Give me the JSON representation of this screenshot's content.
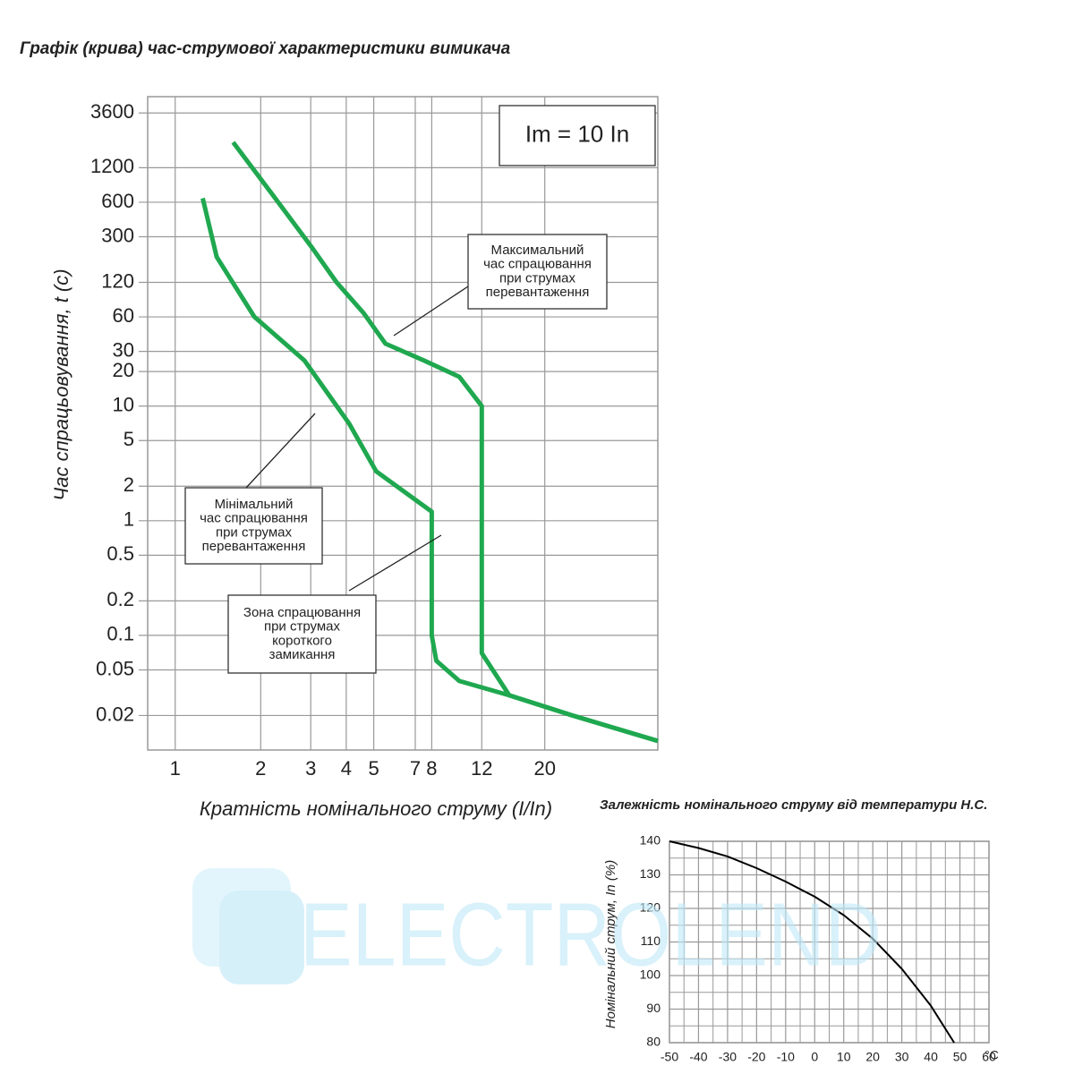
{
  "chart_data": [
    {
      "type": "line",
      "title": "Графік (крива) час-струмової характеристики вимикача",
      "xlabel": "Кратність номінального струму (I/In)",
      "ylabel": "Час спрацьовування, t (c)",
      "xscale": "log",
      "yscale": "log",
      "xlim": [
        0.8,
        50
      ],
      "ylim": [
        0.01,
        5000
      ],
      "xticks": [
        1,
        2,
        3,
        4,
        5,
        7,
        8,
        12,
        20
      ],
      "yticks": [
        3600,
        1200,
        600,
        300,
        120,
        60,
        30,
        20,
        10,
        5,
        2,
        1,
        0.5,
        0.2,
        0.1,
        0.05,
        0.02
      ],
      "grid": true,
      "series": [
        {
          "color": "#1fa84f",
          "x": [
            1.6,
            2.2,
            3,
            3.7,
            4.6,
            5.5,
            7.5,
            10,
            12,
            12,
            15,
            25,
            50
          ],
          "values": [
            2000,
            700,
            250,
            120,
            65,
            35,
            25,
            18,
            10,
            0.07,
            0.03,
            0.02,
            0.012
          ]
        },
        {
          "color": "#1fa84f",
          "x": [
            1.25,
            1.4,
            1.9,
            2.85,
            4.1,
            5.1,
            8,
            8,
            8.3,
            10,
            15,
            25,
            50
          ],
          "values": [
            650,
            200,
            60,
            25,
            7,
            2.7,
            1.2,
            0.1,
            0.06,
            0.04,
            0.03,
            0.02,
            0.012
          ]
        }
      ],
      "annotations": [
        {
          "lines": [
            "Im = 10 In"
          ]
        },
        {
          "lines": [
            "Максимальний",
            "час спрацювання",
            "при струмах",
            "перевантаження"
          ]
        },
        {
          "lines": [
            "Мінімальний",
            "час спрацювання",
            "при струмах",
            "перевантаження"
          ]
        },
        {
          "lines": [
            "Зона спрацювання",
            "при струмах",
            "короткого",
            "замикання"
          ]
        }
      ]
    },
    {
      "type": "line",
      "title": "Залежність номінального струму від температури Н.С.",
      "ylabel": "Номінальний струм, In (%)",
      "x_unit": "°C",
      "xlim": [
        -50,
        60
      ],
      "ylim": [
        80,
        140
      ],
      "xticks": [
        -50,
        -40,
        -30,
        -20,
        -10,
        0,
        10,
        20,
        30,
        40,
        50,
        60
      ],
      "yticks": [
        80,
        90,
        100,
        110,
        120,
        130,
        140
      ],
      "grid": true,
      "series": [
        {
          "color": "#000000",
          "x": [
            -50,
            -40,
            -30,
            -20,
            -10,
            0,
            10,
            20,
            30,
            40,
            48
          ],
          "values": [
            140,
            138,
            135.5,
            132,
            128,
            123.5,
            118,
            111,
            102,
            91,
            80
          ]
        }
      ]
    }
  ],
  "watermark": "ELECTROLEND"
}
